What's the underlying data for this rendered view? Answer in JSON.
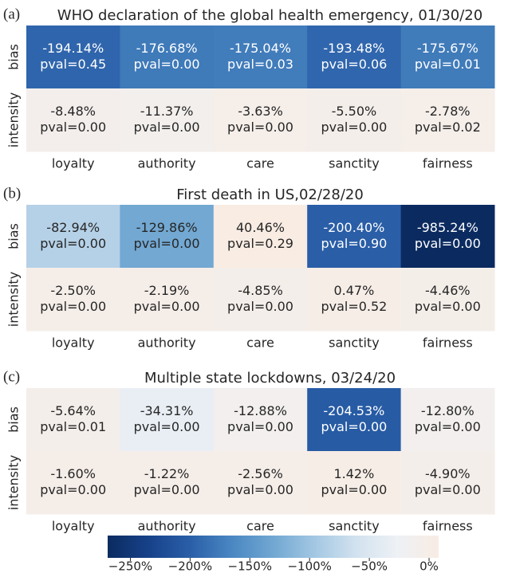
{
  "chart_data": [
    {
      "type": "heatmap",
      "panel_label": "(a)",
      "title": "WHO declaration of the global health emergency, 01/30/20",
      "rows": [
        "bias",
        "intensity"
      ],
      "columns": [
        "loyalty",
        "authority",
        "care",
        "sanctity",
        "fairness"
      ],
      "values": [
        [
          -194.14,
          -176.68,
          -175.04,
          -193.48,
          -175.67
        ],
        [
          -8.48,
          -11.37,
          -3.63,
          -5.5,
          -2.78
        ]
      ],
      "value_labels": [
        [
          "-194.14%",
          "-176.68%",
          "-175.04%",
          "-193.48%",
          "-175.67%"
        ],
        [
          "-8.48%",
          "-11.37%",
          "-3.63%",
          "-5.50%",
          "-2.78%"
        ]
      ],
      "pval_labels": [
        [
          "pval=0.45",
          "pval=0.00",
          "pval=0.03",
          "pval=0.06",
          "pval=0.01"
        ],
        [
          "pval=0.00",
          "pval=0.00",
          "pval=0.00",
          "pval=0.00",
          "pval=0.02"
        ]
      ]
    },
    {
      "type": "heatmap",
      "panel_label": "(b)",
      "title": "First death in US,02/28/20",
      "rows": [
        "bias",
        "intensity"
      ],
      "columns": [
        "loyalty",
        "authority",
        "care",
        "sanctity",
        "fairness"
      ],
      "values": [
        [
          -82.94,
          -129.86,
          40.46,
          -200.4,
          -985.24
        ],
        [
          -2.5,
          -2.19,
          -4.85,
          0.47,
          -4.46
        ]
      ],
      "value_labels": [
        [
          "-82.94%",
          "-129.86%",
          "40.46%",
          "-200.40%",
          "-985.24%"
        ],
        [
          "-2.50%",
          "-2.19%",
          "-4.85%",
          "0.47%",
          "-4.46%"
        ]
      ],
      "pval_labels": [
        [
          "pval=0.00",
          "pval=0.00",
          "pval=0.29",
          "pval=0.90",
          "pval=0.00"
        ],
        [
          "pval=0.00",
          "pval=0.00",
          "pval=0.00",
          "pval=0.52",
          "pval=0.00"
        ]
      ]
    },
    {
      "type": "heatmap",
      "panel_label": "(c)",
      "title": "Multiple state lockdowns, 03/24/20",
      "rows": [
        "bias",
        "intensity"
      ],
      "columns": [
        "loyalty",
        "authority",
        "care",
        "sanctity",
        "fairness"
      ],
      "values": [
        [
          -5.64,
          -34.31,
          -12.88,
          -204.53,
          -12.8
        ],
        [
          -1.6,
          -1.22,
          -2.56,
          1.42,
          -4.9
        ]
      ],
      "value_labels": [
        [
          "-5.64%",
          "-34.31%",
          "-12.88%",
          "-204.53%",
          "-12.80%"
        ],
        [
          "-1.60%",
          "-1.22%",
          "-2.56%",
          "1.42%",
          "-4.90%"
        ]
      ],
      "pval_labels": [
        [
          "pval=0.01",
          "pval=0.00",
          "pval=0.00",
          "pval=0.00",
          "pval=0.00"
        ],
        [
          "pval=0.00",
          "pval=0.00",
          "pval=0.00",
          "pval=0.00",
          "pval=0.00"
        ]
      ]
    }
  ],
  "colorbar": {
    "clim": [
      -269,
      8
    ],
    "ticks": [
      {
        "value": -250,
        "label": "−250%"
      },
      {
        "value": -200,
        "label": "−200%"
      },
      {
        "value": -150,
        "label": "−150%"
      },
      {
        "value": -100,
        "label": "−100%"
      },
      {
        "value": -50,
        "label": "−50%"
      },
      {
        "value": 0,
        "label": "0%"
      }
    ],
    "colors": [
      "#0b2b60",
      "#17428a",
      "#2a5fa8",
      "#4a87c2",
      "#71a7d2",
      "#a3c7e3",
      "#d2e2ef",
      "#eef1f5",
      "#f8ece3"
    ]
  }
}
